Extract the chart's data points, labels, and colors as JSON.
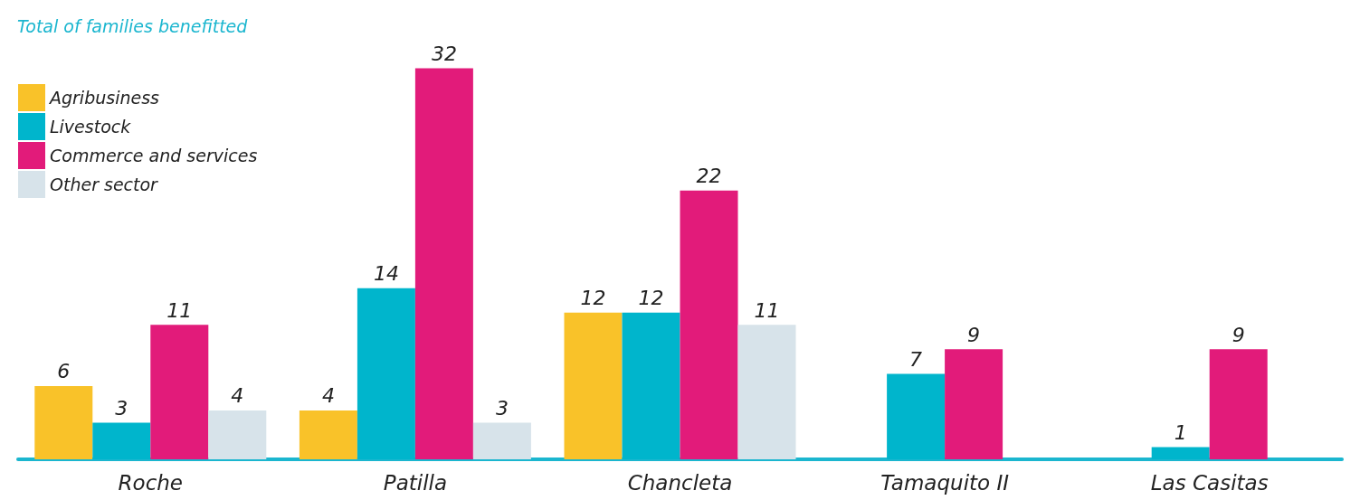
{
  "chart_data": {
    "type": "bar",
    "title": "Total of families benefitted",
    "categories": [
      "Roche",
      "Patilla",
      "Chancleta",
      "Tamaquito II",
      "Las Casitas"
    ],
    "series": [
      {
        "name": "Agribusiness",
        "color": "#f9c229",
        "values": [
          6,
          4,
          12,
          null,
          null
        ]
      },
      {
        "name": "Livestock",
        "color": "#00b5cc",
        "values": [
          3,
          14,
          12,
          7,
          1
        ]
      },
      {
        "name": "Commerce and services",
        "color": "#e21b7a",
        "values": [
          11,
          32,
          22,
          9,
          9
        ]
      },
      {
        "name": "Other sector",
        "color": "#d7e3ea",
        "values": [
          4,
          3,
          11,
          null,
          null
        ]
      }
    ],
    "data_labels": true,
    "legend": "top left",
    "grid": false
  }
}
